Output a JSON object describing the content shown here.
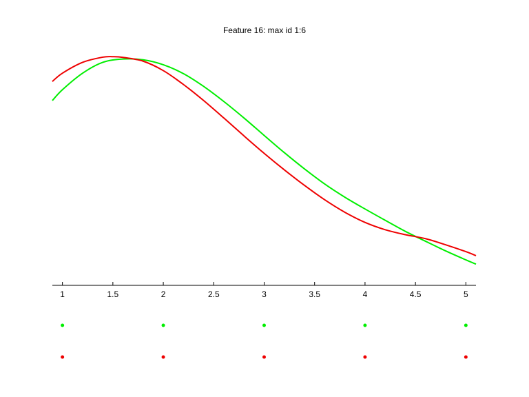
{
  "chart_data": {
    "type": "line",
    "title": "Feature 16: max id 1:6",
    "xlabel": "",
    "ylabel": "",
    "xlim": [
      0.9,
      5.1
    ],
    "x_ticks": [
      1,
      1.5,
      2,
      2.5,
      3,
      3.5,
      4,
      4.5,
      5
    ],
    "x_tick_labels": [
      "1",
      "1.5",
      "2",
      "2.5",
      "3",
      "3.5",
      "4",
      "4.5",
      "5"
    ],
    "ylim": [
      0,
      1
    ],
    "grid": false,
    "y_axis_visible": false,
    "series": [
      {
        "color": "#00ee00",
        "x": [
          0.9,
          1.0,
          1.2,
          1.4,
          1.6,
          1.8,
          2.0,
          2.2,
          2.4,
          2.6,
          2.8,
          3.0,
          3.2,
          3.4,
          3.6,
          3.8,
          4.0,
          4.2,
          4.4,
          4.6,
          4.8,
          5.0,
          5.1
        ],
        "y": [
          0.784,
          0.83,
          0.9,
          0.946,
          0.96,
          0.957,
          0.936,
          0.898,
          0.844,
          0.78,
          0.71,
          0.636,
          0.563,
          0.494,
          0.43,
          0.374,
          0.324,
          0.276,
          0.229,
          0.187,
          0.146,
          0.108,
          0.09
        ],
        "dots_x": [
          1,
          2,
          3,
          4,
          5
        ]
      },
      {
        "color": "#ee0000",
        "x": [
          0.9,
          1.0,
          1.2,
          1.4,
          1.5,
          1.6,
          1.8,
          2.0,
          2.2,
          2.4,
          2.6,
          2.8,
          3.0,
          3.2,
          3.4,
          3.6,
          3.8,
          4.0,
          4.2,
          4.4,
          4.6,
          4.8,
          5.0,
          5.1
        ],
        "y": [
          0.865,
          0.9,
          0.946,
          0.968,
          0.97,
          0.967,
          0.951,
          0.911,
          0.852,
          0.784,
          0.71,
          0.634,
          0.56,
          0.49,
          0.424,
          0.363,
          0.31,
          0.267,
          0.236,
          0.215,
          0.198,
          0.172,
          0.143,
          0.126
        ],
        "dots_x": [
          1,
          2,
          3,
          4,
          5
        ]
      }
    ]
  }
}
